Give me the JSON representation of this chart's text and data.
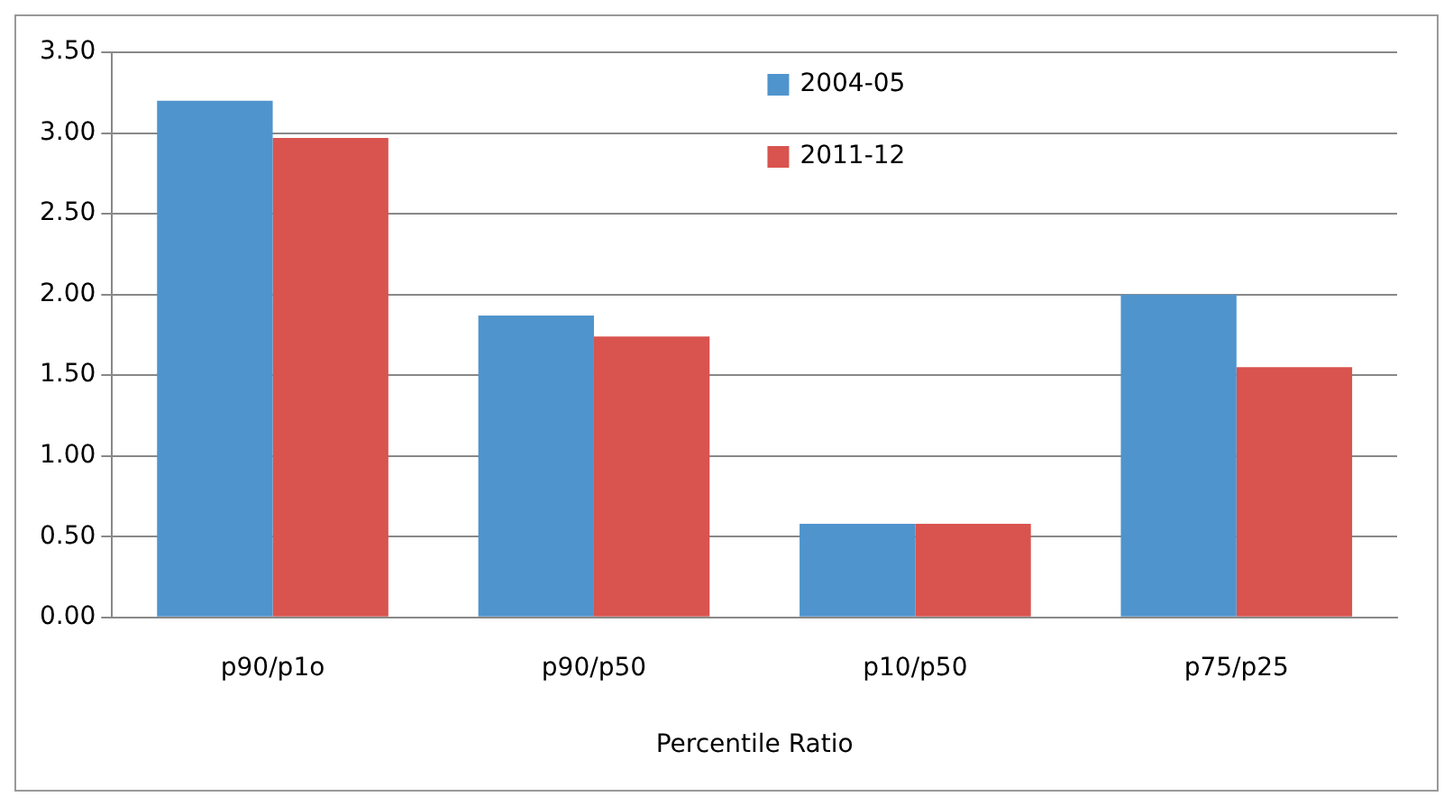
{
  "chart_data": {
    "type": "bar",
    "xlabel": "Percentile Ratio",
    "categories": [
      "p90/p1o",
      "p90/p50",
      "p10/p50",
      "p75/p25"
    ],
    "series": [
      {
        "name": "2004-05",
        "color": "#4f94cd",
        "values": [
          3.2,
          1.87,
          0.58,
          2.0
        ]
      },
      {
        "name": "2011-12",
        "color": "#d9534f",
        "values": [
          2.97,
          1.74,
          0.58,
          1.55
        ]
      }
    ],
    "ylim": [
      0,
      3.5
    ],
    "yticks": [
      {
        "value": 0,
        "label": "0.00"
      },
      {
        "value": 0.5,
        "label": "0.50"
      },
      {
        "value": 1,
        "label": "1.00"
      },
      {
        "value": 1.5,
        "label": "1.50"
      },
      {
        "value": 2,
        "label": "2.00"
      },
      {
        "value": 2.5,
        "label": "2.50"
      },
      {
        "value": 3,
        "label": "3.00"
      },
      {
        "value": 3.5,
        "label": "3.50"
      }
    ],
    "grid": "y",
    "legend": "top"
  }
}
